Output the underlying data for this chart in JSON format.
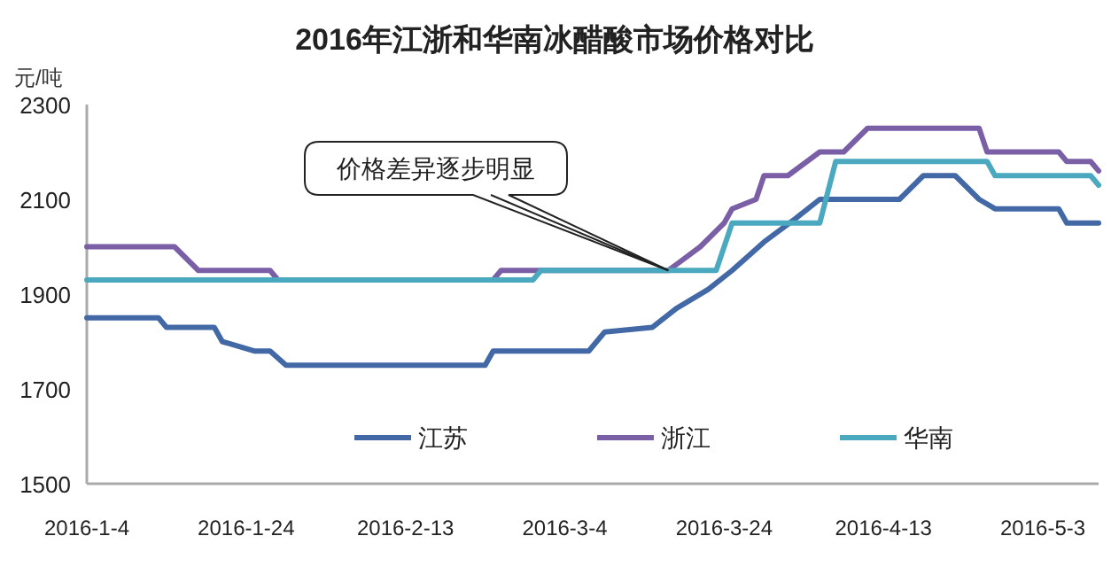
{
  "chart_data": {
    "type": "line",
    "title": "2016年江浙和华南冰醋酸市场价格对比",
    "ylabel": "元/吨",
    "xlim": [
      "2016-01-04",
      "2016-05-10"
    ],
    "xticks": [
      {
        "value": "2016-01-04",
        "label": "2016-1-4"
      },
      {
        "value": "2016-01-24",
        "label": "2016-1-24"
      },
      {
        "value": "2016-02-13",
        "label": "2016-2-13"
      },
      {
        "value": "2016-03-04",
        "label": "2016-3-4"
      },
      {
        "value": "2016-03-24",
        "label": "2016-3-24"
      },
      {
        "value": "2016-04-13",
        "label": "2016-4-13"
      },
      {
        "value": "2016-05-03",
        "label": "2016-5-3"
      }
    ],
    "ylim": [
      1500,
      2300
    ],
    "yticks": [
      1500,
      1700,
      1900,
      2100,
      2300
    ],
    "grid": false,
    "legend": "bottom",
    "marker": "none",
    "line_style": "solid",
    "annotations": [
      {
        "text": "价格差异逐步明显",
        "x": "2016-03-17",
        "y": 1950
      }
    ],
    "series": [
      {
        "name": "江苏",
        "color": "#4268a6",
        "x": [
          "2016-01-04",
          "2016-01-13",
          "2016-01-14",
          "2016-01-20",
          "2016-01-21",
          "2016-01-25",
          "2016-01-27",
          "2016-01-29",
          "2016-02-23",
          "2016-02-24",
          "2016-03-07",
          "2016-03-09",
          "2016-03-15",
          "2016-03-18",
          "2016-03-22",
          "2016-03-25",
          "2016-03-29",
          "2016-04-02",
          "2016-04-05",
          "2016-04-15",
          "2016-04-18",
          "2016-04-22",
          "2016-04-25",
          "2016-04-27",
          "2016-05-05",
          "2016-05-06",
          "2016-05-10"
        ],
        "values": [
          1850,
          1850,
          1830,
          1830,
          1800,
          1780,
          1780,
          1750,
          1750,
          1780,
          1780,
          1820,
          1830,
          1870,
          1910,
          1950,
          2010,
          2060,
          2100,
          2100,
          2150,
          2150,
          2100,
          2080,
          2080,
          2050,
          2050
        ]
      },
      {
        "name": "浙江",
        "color": "#7a5fa6",
        "x": [
          "2016-01-04",
          "2016-01-15",
          "2016-01-18",
          "2016-01-27",
          "2016-01-28",
          "2016-02-24",
          "2016-02-25",
          "2016-03-17",
          "2016-03-21",
          "2016-03-24",
          "2016-03-25",
          "2016-03-28",
          "2016-03-29",
          "2016-04-01",
          "2016-04-05",
          "2016-04-08",
          "2016-04-11",
          "2016-04-25",
          "2016-04-26",
          "2016-05-05",
          "2016-05-06",
          "2016-05-09",
          "2016-05-10"
        ],
        "values": [
          2000,
          2000,
          1950,
          1950,
          1930,
          1930,
          1950,
          1950,
          2000,
          2050,
          2080,
          2100,
          2150,
          2150,
          2200,
          2200,
          2250,
          2250,
          2200,
          2200,
          2180,
          2180,
          2160
        ]
      },
      {
        "name": "华南",
        "color": "#4aa9bf",
        "x": [
          "2016-01-04",
          "2016-02-29",
          "2016-03-01",
          "2016-03-23",
          "2016-03-25",
          "2016-04-05",
          "2016-04-07",
          "2016-04-26",
          "2016-04-27",
          "2016-05-09",
          "2016-05-10"
        ],
        "values": [
          1930,
          1930,
          1950,
          1950,
          2050,
          2050,
          2180,
          2180,
          2150,
          2150,
          2130
        ]
      }
    ]
  }
}
